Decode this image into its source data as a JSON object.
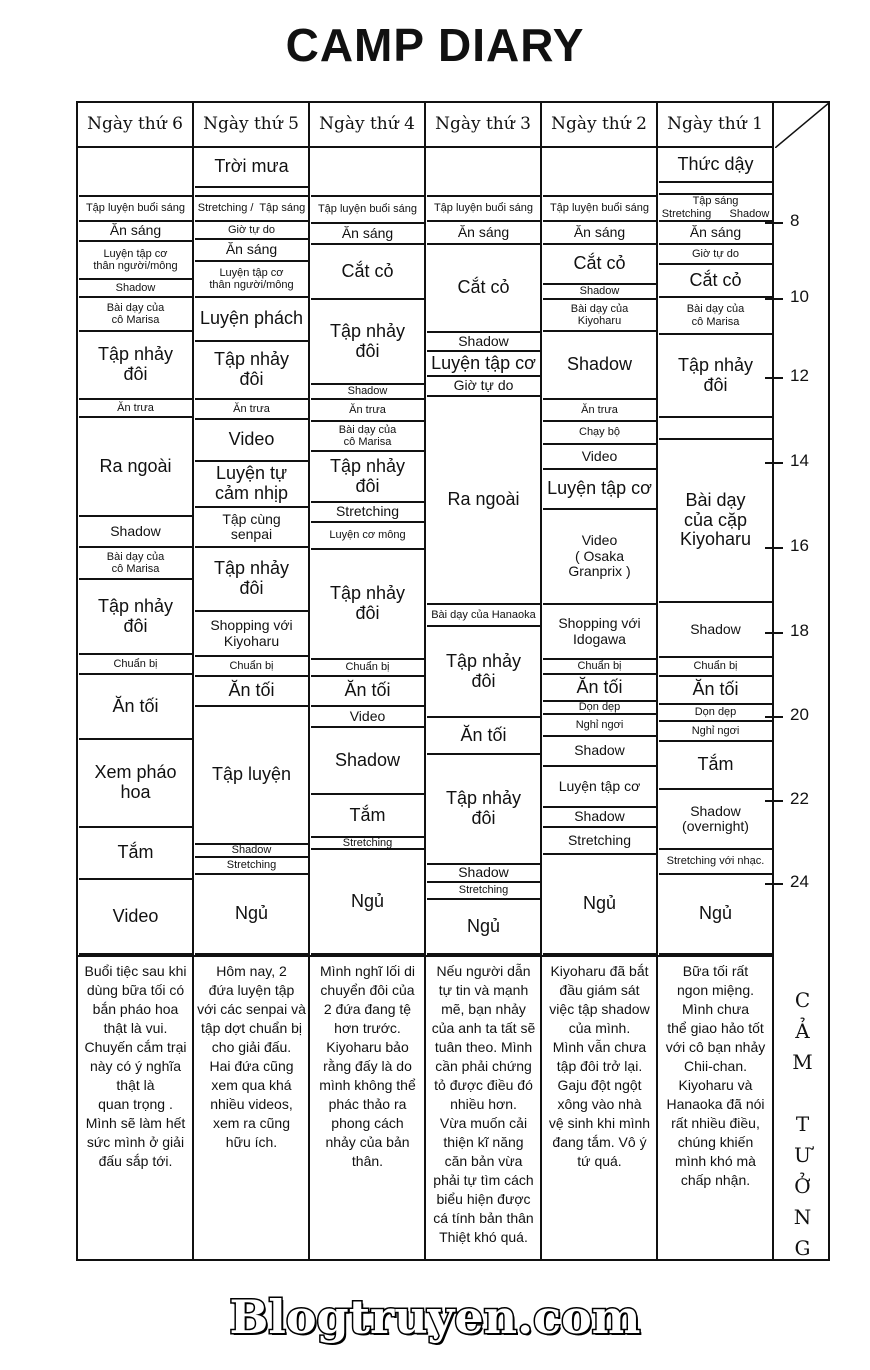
{
  "title": "CAMP DIARY",
  "columns": [
    {
      "header": "Ngày thứ 6",
      "cells": [
        "",
        "Tập luyện buổi sáng",
        "Ăn sáng",
        "Luyện tập cơ\nthân người/mông",
        "Shadow",
        "Bài dạy của\ncô Marisa",
        "Tập nhảy\nđôi",
        "Ăn trưa",
        "Ra ngoài",
        "Shadow",
        "Bài dạy của\ncô Marisa",
        "Tập nhảy\nđôi",
        "Chuẩn bị",
        "Ăn tối",
        "Xem pháo\nhoa",
        "Tắm",
        "Video"
      ]
    },
    {
      "header": "Ngày thứ 5",
      "cells": [
        "Trời mưa",
        "",
        "Stretching /  Tập sáng",
        "Giờ tự do",
        "Ăn sáng",
        "Luyện tập cơ\nthân người/mông",
        "Luyện phách",
        "Tập nhảy\nđôi",
        "Ăn trưa",
        "Video",
        "Luyện tự\ncảm nhịp",
        "Tập cùng\nsenpai",
        "Tập nhảy\nđôi",
        "Shopping với\nKiyoharu",
        "Chuẩn bị",
        "Ăn tối",
        "Tập luyện",
        "Shadow",
        "Stretching",
        "Ngủ"
      ]
    },
    {
      "header": "Ngày thứ 4",
      "cells": [
        "",
        "Tập luyện buổi sáng",
        "Ăn sáng",
        "Cắt cỏ",
        "Tập nhảy\nđôi",
        "Shadow",
        "Ăn trưa",
        "Bài dạy của\ncô Marisa",
        "Tập nhảy\nđôi",
        "Stretching",
        "Luyện cơ mông",
        "Tập nhảy\nđôi",
        "Chuẩn bị",
        "Ăn tối",
        "Video",
        "Shadow",
        "Tắm",
        "Stretching",
        "Ngủ"
      ]
    },
    {
      "header": "Ngày thứ 3",
      "cells": [
        "",
        "Tập luyện buổi sáng",
        "Ăn sáng",
        "Cắt cỏ",
        "Shadow",
        "Luyện tập cơ",
        "Giờ tự do",
        "Ra ngoài",
        "Bài dạy của Hanaoka",
        "Tập nhảy\nđôi",
        "Ăn tối",
        "Tập nhảy\nđôi",
        "Shadow",
        "Stretching",
        "Ngủ"
      ]
    },
    {
      "header": "Ngày thứ 2",
      "cells": [
        "",
        "Tập luyện buổi sáng",
        "Ăn sáng",
        "Cắt cỏ",
        "Shadow",
        "Bài dạy của\nKiyoharu",
        "Shadow",
        "Ăn trưa",
        "Chạy bộ",
        "Video",
        "Luyện tập cơ",
        "Video\n( Osaka\nGranprix )",
        "Shopping với\nIdogawa",
        "Chuẩn bị",
        "Ăn tối",
        "Dọn dẹp",
        "Nghỉ ngơi",
        "Shadow",
        "Luyện tập cơ",
        "Shadow",
        "Stretching",
        "Ngủ"
      ]
    },
    {
      "header": "Ngày thứ 1",
      "cells": [
        "Thức dậy",
        "",
        "Tập sáng\nStretching      Shadow",
        "Ăn sáng",
        "Giờ tự do",
        "Cắt cỏ",
        "Bài dạy của\ncô Marisa",
        "Tập nhảy\nđôi",
        "",
        "Bài dạy\ncủa cặp\nKiyoharu",
        "Shadow",
        "Chuẩn bị",
        "Ăn tối",
        "Dọn dẹp",
        "Nghỉ ngơi",
        "Tắm",
        "Shadow\n(overnight)",
        "Stretching với nhạc.",
        "Ngủ"
      ]
    }
  ],
  "time_marks": [
    "8",
    "10",
    "12",
    "14",
    "16",
    "18",
    "20",
    "22",
    "24"
  ],
  "notes": [
    "Buổi tiệc sau khi\ndùng bữa tối có\nbắn pháo hoa\nthật là vui.\nChuyến cắm trại\nnày có ý nghĩa\nthật là\nquan trọng .\nMình sẽ làm hết\nsức mình ở giải\nđấu sắp tới.",
    "Hôm nay, 2\nđứa luyện tập\nvới các senpai và\ntập dợt chuẩn bị\ncho giải đấu.\nHai đứa cũng\nxem qua khá\nnhiều videos,\nxem ra cũng\nhữu ích.",
    "Mình nghĩ lối di\nchuyển đôi của\n2 đứa đang tệ\nhơn trước.\nKiyoharu bảo\nrằng đấy là do\nmình không thể\nphác thảo ra\nphong cách\nnhảy của bản\nthân.",
    "Nếu người dẫn\ntự tin và mạnh\nmẽ, bạn nhảy\ncủa anh ta tất sẽ\ntuân theo. Mình\ncần phải chứng\ntỏ được điều đó\nnhiều hơn.\nVừa muốn cải\nthiện kĩ năng\ncăn bản vừa\nphải tự tìm cách\nbiểu hiện được\ncá tính bản thân\nThiệt khó quá.",
    "Kiyoharu đã bắt\nđầu giám sát\nviệc tập shadow\ncủa mình.\nMình vẫn chưa\ntập đôi trở lại.\nGaju đột ngột\nxông vào nhà\nvệ sinh khi mình\nđang tắm. Vô ý\ntứ quá.",
    "Bữa tối rất\nngon miệng.\nMình chưa\nthể giao hảo tốt\nvới cô bạn nhảy\nChii-chan.\nKiyoharu và\nHanaoka đã nói\nrất nhiều điều,\nchúng khiến\nmình khó mà\nchấp nhận."
  ],
  "side_label": "C\nẢ\nM\n\nT\nƯ\nỞ\nN\nG",
  "watermark": "Blogtruyen.com"
}
